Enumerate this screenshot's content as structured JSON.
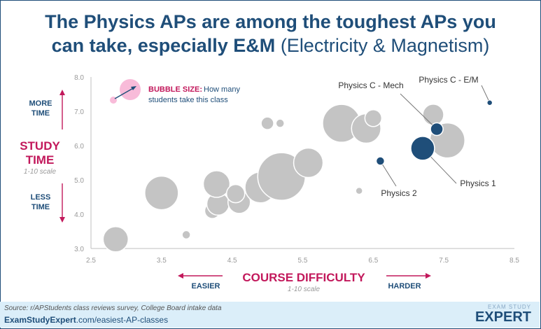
{
  "title": {
    "line1": "The Physics APs are among the toughest APs you",
    "line2_bold": "can take, especially E&M",
    "line2_normal": "(Electricity & Magnetism)"
  },
  "y_side": {
    "more_line1": "MORE",
    "more_line2": "TIME",
    "label_line1": "STUDY",
    "label_line2": "TIME",
    "scale": "1-10 scale",
    "less_line1": "LESS",
    "less_line2": "TIME"
  },
  "x_side": {
    "easier": "EASIER",
    "label": "COURSE DIFFICULTY",
    "scale": "1-10 scale",
    "harder": "HARDER"
  },
  "legend": {
    "heading": "BUBBLE SIZE:",
    "text_line1": "How many",
    "text_line2": "students take this class"
  },
  "footer": {
    "source": "Source: r/APStudents class reviews survey, College Board intake data",
    "url_bold": "ExamStudyExpert",
    "url_rest": ".com/easiest-AP-classes",
    "brand_small": "EXAM STUDY",
    "brand_big": "EXPERT"
  },
  "colors": {
    "navy": "#1f4e79",
    "magenta": "#c2185b",
    "grey_bubble": "#c4c4c4",
    "legend_bubble": "#f8bbd9"
  },
  "chart_data": {
    "type": "scatter",
    "xlim": [
      2.5,
      8.5
    ],
    "ylim": [
      3.0,
      8.0
    ],
    "xticks": [
      "2.5",
      "3.5",
      "4.5",
      "5.5",
      "6.5",
      "7.5",
      "8.5"
    ],
    "yticks": [
      "3.0",
      "4.0",
      "5.0",
      "6.0",
      "7.0",
      "8.0"
    ],
    "grid": false,
    "bubble_size_meaning": "How many students take this class",
    "points": [
      {
        "x": 2.85,
        "y": 3.27,
        "size": 18,
        "highlight": false
      },
      {
        "x": 3.85,
        "y": 3.4,
        "size": 6,
        "highlight": false
      },
      {
        "x": 3.5,
        "y": 4.62,
        "size": 24,
        "highlight": false
      },
      {
        "x": 4.22,
        "y": 4.1,
        "size": 11,
        "highlight": false
      },
      {
        "x": 4.3,
        "y": 4.3,
        "size": 16,
        "highlight": false
      },
      {
        "x": 4.6,
        "y": 4.35,
        "size": 16,
        "highlight": false
      },
      {
        "x": 4.28,
        "y": 4.88,
        "size": 19,
        "highlight": false
      },
      {
        "x": 4.55,
        "y": 4.6,
        "size": 13,
        "highlight": false
      },
      {
        "x": 4.9,
        "y": 4.78,
        "size": 22,
        "highlight": false
      },
      {
        "x": 5.2,
        "y": 5.1,
        "size": 34,
        "highlight": false
      },
      {
        "x": 5.58,
        "y": 5.5,
        "size": 21,
        "highlight": false
      },
      {
        "x": 5.0,
        "y": 6.65,
        "size": 9,
        "highlight": false
      },
      {
        "x": 5.18,
        "y": 6.65,
        "size": 6,
        "highlight": false
      },
      {
        "x": 6.05,
        "y": 6.65,
        "size": 27,
        "highlight": false
      },
      {
        "x": 6.3,
        "y": 4.68,
        "size": 5,
        "highlight": false
      },
      {
        "x": 6.4,
        "y": 6.5,
        "size": 21,
        "highlight": false
      },
      {
        "x": 6.5,
        "y": 6.8,
        "size": 12,
        "highlight": false
      },
      {
        "x": 7.35,
        "y": 6.9,
        "size": 15,
        "highlight": false
      },
      {
        "x": 7.55,
        "y": 6.15,
        "size": 25,
        "highlight": false
      },
      {
        "x": 6.6,
        "y": 5.55,
        "size": 6,
        "highlight": true,
        "name": "Physics 2"
      },
      {
        "x": 7.2,
        "y": 5.92,
        "size": 17,
        "highlight": true,
        "name": "Physics 1"
      },
      {
        "x": 7.4,
        "y": 6.48,
        "size": 9,
        "highlight": true,
        "name": "Physics C - Mech"
      },
      {
        "x": 8.15,
        "y": 7.25,
        "size": 4,
        "highlight": true,
        "name": "Physics C - E/M"
      }
    ]
  }
}
